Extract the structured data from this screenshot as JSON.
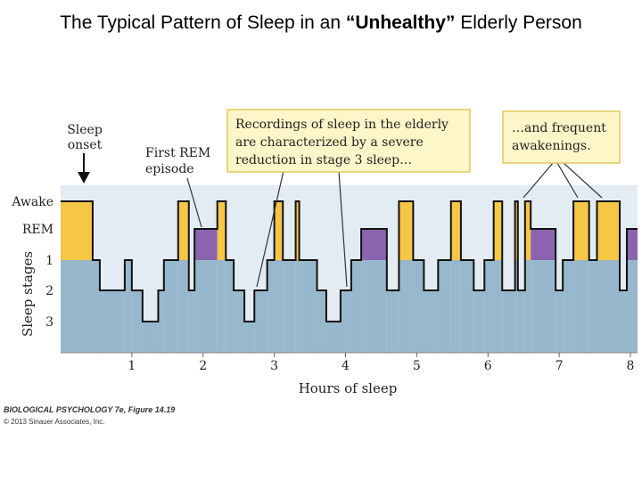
{
  "page_title": {
    "before": "The Typical Pattern of Sleep in an ",
    "emphasis": "“Unhealthy”",
    "after": " Elderly Person"
  },
  "chart_data": {
    "type": "step",
    "xlabel": "Hours of sleep",
    "ylabel": "Sleep stages",
    "xlim": [
      0,
      8.1
    ],
    "x_ticks": [
      "1",
      "2",
      "3",
      "4",
      "5",
      "6",
      "7",
      "8"
    ],
    "y_levels": [
      "Awake",
      "REM",
      "1",
      "2",
      "3"
    ],
    "segments": [
      {
        "start": 0.0,
        "end": 0.45,
        "stage": "Awake"
      },
      {
        "start": 0.45,
        "end": 0.55,
        "stage": "1"
      },
      {
        "start": 0.55,
        "end": 0.9,
        "stage": "2"
      },
      {
        "start": 0.9,
        "end": 1.0,
        "stage": "1"
      },
      {
        "start": 1.0,
        "end": 1.15,
        "stage": "2"
      },
      {
        "start": 1.15,
        "end": 1.37,
        "stage": "3"
      },
      {
        "start": 1.37,
        "end": 1.45,
        "stage": "2"
      },
      {
        "start": 1.45,
        "end": 1.65,
        "stage": "1"
      },
      {
        "start": 1.65,
        "end": 1.8,
        "stage": "Awake"
      },
      {
        "start": 1.8,
        "end": 1.88,
        "stage": "2"
      },
      {
        "start": 1.88,
        "end": 2.2,
        "stage": "REM"
      },
      {
        "start": 2.2,
        "end": 2.32,
        "stage": "Awake"
      },
      {
        "start": 2.32,
        "end": 2.43,
        "stage": "1"
      },
      {
        "start": 2.43,
        "end": 2.58,
        "stage": "2"
      },
      {
        "start": 2.58,
        "end": 2.72,
        "stage": "3"
      },
      {
        "start": 2.72,
        "end": 2.9,
        "stage": "2"
      },
      {
        "start": 2.9,
        "end": 3.0,
        "stage": "1"
      },
      {
        "start": 3.0,
        "end": 3.12,
        "stage": "Awake"
      },
      {
        "start": 3.12,
        "end": 3.3,
        "stage": "1"
      },
      {
        "start": 3.3,
        "end": 3.35,
        "stage": "Awake"
      },
      {
        "start": 3.35,
        "end": 3.6,
        "stage": "1"
      },
      {
        "start": 3.6,
        "end": 3.73,
        "stage": "2"
      },
      {
        "start": 3.73,
        "end": 3.93,
        "stage": "3"
      },
      {
        "start": 3.93,
        "end": 4.08,
        "stage": "2"
      },
      {
        "start": 4.08,
        "end": 4.22,
        "stage": "1"
      },
      {
        "start": 4.22,
        "end": 4.58,
        "stage": "REM"
      },
      {
        "start": 4.58,
        "end": 4.75,
        "stage": "2"
      },
      {
        "start": 4.75,
        "end": 4.95,
        "stage": "Awake"
      },
      {
        "start": 4.95,
        "end": 5.1,
        "stage": "1"
      },
      {
        "start": 5.1,
        "end": 5.3,
        "stage": "2"
      },
      {
        "start": 5.3,
        "end": 5.48,
        "stage": "1"
      },
      {
        "start": 5.48,
        "end": 5.62,
        "stage": "Awake"
      },
      {
        "start": 5.62,
        "end": 5.8,
        "stage": "1"
      },
      {
        "start": 5.8,
        "end": 5.95,
        "stage": "2"
      },
      {
        "start": 5.95,
        "end": 6.08,
        "stage": "1"
      },
      {
        "start": 6.08,
        "end": 6.2,
        "stage": "Awake"
      },
      {
        "start": 6.2,
        "end": 6.38,
        "stage": "2"
      },
      {
        "start": 6.38,
        "end": 6.42,
        "stage": "Awake"
      },
      {
        "start": 6.42,
        "end": 6.52,
        "stage": "2"
      },
      {
        "start": 6.52,
        "end": 6.6,
        "stage": "Awake"
      },
      {
        "start": 6.6,
        "end": 6.95,
        "stage": "REM"
      },
      {
        "start": 6.95,
        "end": 7.05,
        "stage": "2"
      },
      {
        "start": 7.05,
        "end": 7.2,
        "stage": "1"
      },
      {
        "start": 7.2,
        "end": 7.42,
        "stage": "Awake"
      },
      {
        "start": 7.42,
        "end": 7.53,
        "stage": "1"
      },
      {
        "start": 7.53,
        "end": 7.85,
        "stage": "Awake"
      },
      {
        "start": 7.85,
        "end": 7.95,
        "stage": "2"
      },
      {
        "start": 7.95,
        "end": 8.1,
        "stage": "REM"
      }
    ],
    "annotations": {
      "sleep_onset": [
        "Sleep",
        "onset"
      ],
      "first_rem": [
        "First REM",
        "episode"
      ],
      "stage3_box": [
        "Recordings of sleep in the elderly",
        "are characterized by a severe",
        "reduction in stage 3 sleep…"
      ],
      "awakenings_box": [
        "…and frequent",
        "awakenings."
      ]
    },
    "colors": {
      "awake": "#f6c646",
      "rem": "#8a64ae",
      "sleep": "#97b8cc",
      "background": "#e4ecf3",
      "callout_fill": "#fdf6c9",
      "callout_border": "#e5c85a"
    }
  },
  "credits": {
    "line1": "BIOLOGICAL PSYCHOLOGY 7e, Figure 14.19",
    "line2": "© 2013 Sinauer Associates, Inc."
  }
}
